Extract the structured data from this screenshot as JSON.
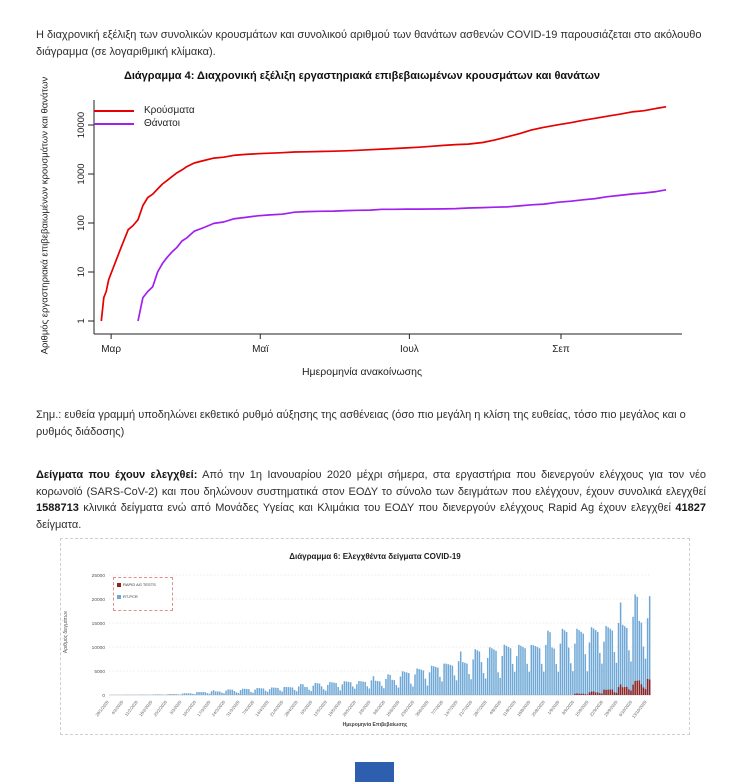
{
  "intro": "Η διαχρονική εξέλιξη των συνολικών κρουσμάτων και συνολικού αριθμού των θανάτων ασθενών COVID-19 παρουσιάζεται στο ακόλουθο διάγραμμα (σε λογαριθμική κλίμακα).",
  "note": "Σημ.: ευθεία γραμμή υποδηλώνει εκθετικό ρυθμό αύξησης της ασθένειας (όσο πιο μεγάλη η κλίση της ευθείας, τόσο πιο μεγάλος και ο ρυθμός διάδοσης)",
  "samples_paragraph": {
    "segments": [
      {
        "text": "Δείγματα που έχουν ελεγχθεί:",
        "bold": true
      },
      {
        "text": " Από την 1η Ιανουαρίου 2020 μέχρι σήμερα, στα εργαστήρια που διενεργούν ελέγχους για τον νέο κορωνοϊό (SARS-CoV-2) και που δηλώνουν συστηματικά στον ΕΟΔΥ το σύνολο των δειγμάτων που ελέγχουν, έχουν συνολικά ελεγχθεί ",
        "bold": false
      },
      {
        "text": "1588713",
        "bold": true
      },
      {
        "text": " κλινικά δείγματα ενώ από Μονάδες Υγείας και Κλιμάκια του ΕΟΔΥ που διενεργούν ελέγχους Rapid Ag έχουν ελεγχθεί ",
        "bold": false
      },
      {
        "text": "41827",
        "bold": true
      },
      {
        "text": " δείγματα.",
        "bold": false
      }
    ]
  },
  "footer": {
    "logo_color": "#2e5eae"
  },
  "chart_data": [
    {
      "type": "line",
      "title": "Διάγραμμα 4: Διαχρονική εξέλιξη εργαστηριακά επιβεβαιωμένων κρουσμάτων και θανάτων",
      "xlabel": "Ημερομηνία ανακοίνωσης",
      "ylabel": "Αριθμός εργαστηριακά επιβεβαιωμένων κρουσμάτων και θανάτων",
      "log_y": true,
      "ylim": [
        1,
        30000
      ],
      "y_ticks": [
        1,
        10,
        100,
        1000,
        10000
      ],
      "x_unit": "days from 23 Feb 2020",
      "x_ticks": [
        {
          "label": "Μαρ",
          "day": 7
        },
        {
          "label": "Μαϊ",
          "day": 68
        },
        {
          "label": "Ιουλ",
          "day": 129
        },
        {
          "label": "Σεπ",
          "day": 191
        }
      ],
      "legend_position": "top-left",
      "series": [
        {
          "name": "Κρούσματα",
          "color": "#e60000",
          "points": [
            [
              3,
              1
            ],
            [
              4,
              3
            ],
            [
              5,
              4
            ],
            [
              6,
              7
            ],
            [
              11,
              31
            ],
            [
              14,
              73
            ],
            [
              16,
              89
            ],
            [
              18,
              117
            ],
            [
              20,
              228
            ],
            [
              22,
              331
            ],
            [
              24,
              387
            ],
            [
              26,
              495
            ],
            [
              28,
              624
            ],
            [
              30,
              743
            ],
            [
              32,
              892
            ],
            [
              34,
              1061
            ],
            [
              36,
              1212
            ],
            [
              38,
              1415
            ],
            [
              41,
              1673
            ],
            [
              45,
              1884
            ],
            [
              49,
              2114
            ],
            [
              53,
              2207
            ],
            [
              57,
              2401
            ],
            [
              62,
              2506
            ],
            [
              67,
              2591
            ],
            [
              72,
              2663
            ],
            [
              77,
              2716
            ],
            [
              82,
              2810
            ],
            [
              87,
              2840
            ],
            [
              92,
              2878
            ],
            [
              98,
              2915
            ],
            [
              103,
              2980
            ],
            [
              108,
              3049
            ],
            [
              113,
              3134
            ],
            [
              118,
              3227
            ],
            [
              123,
              3310
            ],
            [
              128,
              3409
            ],
            [
              133,
              3519
            ],
            [
              138,
              3672
            ],
            [
              143,
              3826
            ],
            [
              148,
              3983
            ],
            [
              153,
              4077
            ],
            [
              159,
              4401
            ],
            [
              164,
              4974
            ],
            [
              169,
              5749
            ],
            [
              174,
              6632
            ],
            [
              179,
              7934
            ],
            [
              184,
              8987
            ],
            [
              190,
              10134
            ],
            [
              195,
              11124
            ],
            [
              200,
              12452
            ],
            [
              205,
              13730
            ],
            [
              210,
              15142
            ],
            [
              215,
              16627
            ],
            [
              220,
              18475
            ],
            [
              225,
              19613
            ],
            [
              230,
              21772
            ],
            [
              234,
              23495
            ]
          ]
        },
        {
          "name": "Θάνατοι",
          "color": "#a020f0",
          "points": [
            [
              18,
              1
            ],
            [
              20,
              3
            ],
            [
              22,
              4
            ],
            [
              24,
              5
            ],
            [
              26,
              10
            ],
            [
              28,
              15
            ],
            [
              30,
              20
            ],
            [
              32,
              26
            ],
            [
              34,
              32
            ],
            [
              36,
              43
            ],
            [
              38,
              50
            ],
            [
              41,
              68
            ],
            [
              45,
              81
            ],
            [
              49,
              98
            ],
            [
              53,
              105
            ],
            [
              57,
              121
            ],
            [
              62,
              130
            ],
            [
              67,
              140
            ],
            [
              72,
              146
            ],
            [
              77,
              151
            ],
            [
              82,
              166
            ],
            [
              87,
              171
            ],
            [
              92,
              173
            ],
            [
              98,
              175
            ],
            [
              103,
              179
            ],
            [
              108,
              182
            ],
            [
              113,
              183
            ],
            [
              118,
              190
            ],
            [
              123,
              190
            ],
            [
              128,
              192
            ],
            [
              133,
              192
            ],
            [
              138,
              193
            ],
            [
              143,
              194
            ],
            [
              148,
              197
            ],
            [
              153,
              202
            ],
            [
              159,
              206
            ],
            [
              164,
              210
            ],
            [
              169,
              213
            ],
            [
              174,
              223
            ],
            [
              179,
              235
            ],
            [
              184,
              243
            ],
            [
              190,
              266
            ],
            [
              195,
              278
            ],
            [
              200,
              297
            ],
            [
              205,
              315
            ],
            [
              210,
              344
            ],
            [
              215,
              366
            ],
            [
              220,
              391
            ],
            [
              225,
              409
            ],
            [
              230,
              437
            ],
            [
              234,
              476
            ]
          ]
        }
      ]
    },
    {
      "type": "bar",
      "title": "Διάγραμμα 6: Ελεγχθέντα δείγματα COVID-19",
      "xlabel": "Ημερομηνία Επιβεβαίωσης",
      "ylabel": "Αριθμός δειγμάτων",
      "ylim": [
        0,
        25000
      ],
      "y_ticks": [
        0,
        5000,
        10000,
        15000,
        20000,
        25000
      ],
      "grid": "dotted horizontal",
      "legend_position": "top-left",
      "x_tick_labels": [
        "28/1/2020",
        "4/2/2020",
        "11/2/2020",
        "18/2/2020",
        "25/2/2020",
        "3/3/2020",
        "10/3/2020",
        "17/3/2020",
        "24/3/2020",
        "31/3/2020",
        "7/4/2020",
        "14/4/2020",
        "21/4/2020",
        "28/4/2020",
        "5/5/2020",
        "12/5/2020",
        "19/5/2020",
        "26/5/2020",
        "2/6/2020",
        "9/6/2020",
        "16/6/2020",
        "23/6/2020",
        "30/6/2020",
        "7/7/2020",
        "14/7/2020",
        "21/7/2020",
        "28/7/2020",
        "4/8/2020",
        "11/8/2020",
        "18/8/2020",
        "25/8/2020",
        "1/9/2020",
        "8/9/2020",
        "15/9/2020",
        "22/9/2020",
        "29/9/2020",
        "6/10/2020",
        "13/10/2020"
      ],
      "weekday_profile": [
        0.8,
        1.0,
        0.95,
        0.9,
        0.85,
        0.55,
        0.4
      ],
      "series": [
        {
          "name": "RAPID AG TESTS",
          "color": "#8e2323",
          "weekly_peak": [
            0,
            0,
            0,
            0,
            0,
            0,
            0,
            0,
            0,
            0,
            0,
            0,
            0,
            0,
            0,
            0,
            0,
            0,
            0,
            0,
            0,
            0,
            0,
            0,
            0,
            0,
            0,
            0,
            0,
            0,
            0,
            0,
            300,
            700,
            1200,
            2000,
            3000,
            3800
          ]
        },
        {
          "name": "RT-PCR",
          "color": "#6fa8d6",
          "weekly_peak": [
            30,
            50,
            80,
            120,
            200,
            400,
            700,
            900,
            1100,
            1300,
            1500,
            1700,
            1900,
            2100,
            2400,
            2700,
            3000,
            3200,
            3500,
            4000,
            4800,
            5600,
            6500,
            7300,
            8200,
            9000,
            9800,
            10800,
            11300,
            11800,
            12300,
            13200,
            13800,
            14800,
            15800,
            17200,
            19500,
            20000
          ]
        }
      ]
    }
  ]
}
